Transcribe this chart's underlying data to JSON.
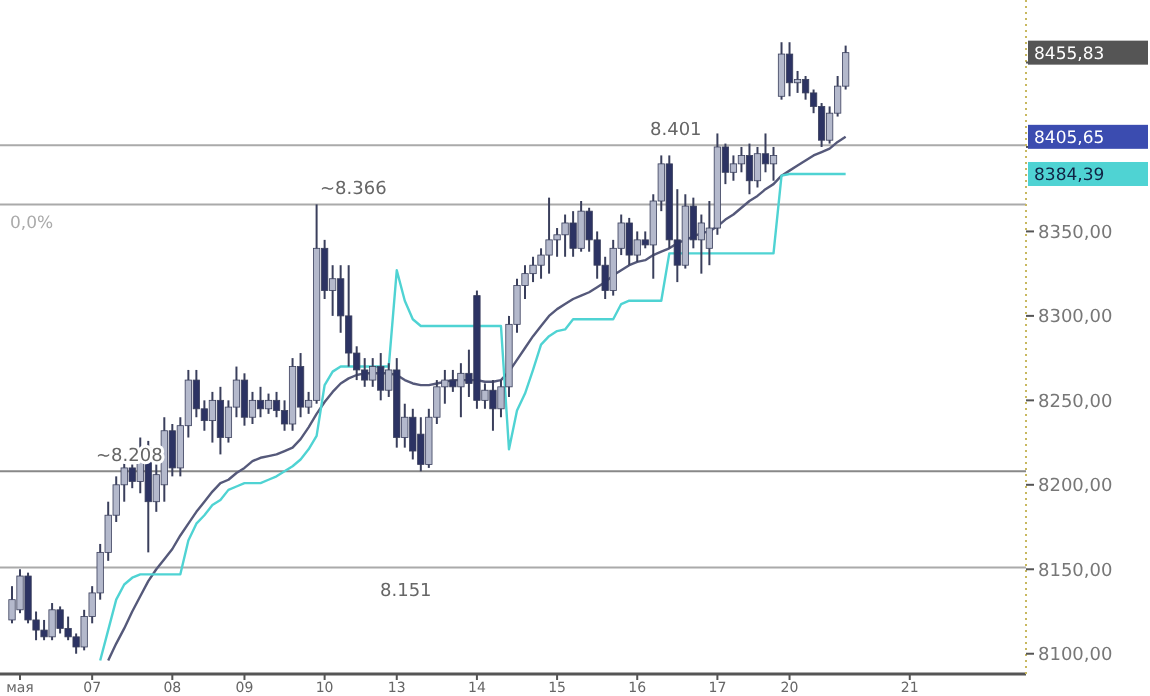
{
  "chart_data": {
    "type": "candlestick",
    "categories": [
      null,
      "мая",
      null,
      null,
      null,
      null,
      null,
      null,
      null,
      null,
      "07",
      null,
      null,
      null,
      null,
      null,
      null,
      null,
      null,
      null,
      "08",
      null,
      null,
      null,
      null,
      null,
      null,
      null,
      null,
      "09",
      null,
      null,
      null,
      null,
      null,
      null,
      null,
      null,
      null,
      "10",
      null,
      null,
      null,
      null,
      null,
      null,
      null,
      null,
      "13",
      null,
      null,
      null,
      null,
      null,
      null,
      null,
      null,
      null,
      "14",
      null,
      null,
      null,
      null,
      null,
      null,
      null,
      null,
      null,
      "15",
      null,
      null,
      null,
      null,
      null,
      null,
      null,
      null,
      null,
      "16",
      null,
      null,
      null,
      null,
      null,
      null,
      null,
      null,
      null,
      "17",
      null,
      null,
      null,
      null,
      null,
      null,
      null,
      null,
      "20",
      null,
      null,
      null,
      null,
      null,
      null,
      null,
      null,
      null,
      null,
      null,
      null,
      null,
      null,
      "21",
      null,
      null,
      null,
      null,
      null,
      null,
      null,
      null,
      null,
      null,
      null,
      null,
      null,
      null
    ],
    "ohlc": [
      [
        8120,
        8140,
        8118,
        8132
      ],
      [
        8126,
        8150,
        8124,
        8146
      ],
      [
        8146,
        8148,
        8118,
        8120
      ],
      [
        8120,
        8125,
        8108,
        8114
      ],
      [
        8114,
        8120,
        8108,
        8110
      ],
      [
        8110,
        8130,
        8108,
        8126
      ],
      [
        8126,
        8128,
        8112,
        8115
      ],
      [
        8115,
        8122,
        8108,
        8110
      ],
      [
        8110,
        8112,
        8100,
        8104
      ],
      [
        8104,
        8126,
        8102,
        8122
      ],
      [
        8122,
        8140,
        8118,
        8136
      ],
      [
        8136,
        8165,
        8132,
        8160
      ],
      [
        8160,
        8190,
        8155,
        8182
      ],
      [
        8182,
        8205,
        8178,
        8200
      ],
      [
        8200,
        8215,
        8190,
        8210
      ],
      [
        8210,
        8212,
        8198,
        8202
      ],
      [
        8202,
        8228,
        8195,
        8222
      ],
      [
        8222,
        8226,
        8160,
        8190
      ],
      [
        8190,
        8212,
        8184,
        8206
      ],
      [
        8200,
        8240,
        8190,
        8232
      ],
      [
        8232,
        8236,
        8205,
        8210
      ],
      [
        8210,
        8240,
        8205,
        8235
      ],
      [
        8235,
        8268,
        8228,
        8262
      ],
      [
        8262,
        8268,
        8240,
        8245
      ],
      [
        8245,
        8250,
        8232,
        8238
      ],
      [
        8238,
        8255,
        8225,
        8250
      ],
      [
        8250,
        8258,
        8218,
        8228
      ],
      [
        8228,
        8250,
        8225,
        8246
      ],
      [
        8246,
        8270,
        8240,
        8262
      ],
      [
        8262,
        8266,
        8235,
        8240
      ],
      [
        8240,
        8255,
        8236,
        8250
      ],
      [
        8250,
        8258,
        8240,
        8245
      ],
      [
        8245,
        8254,
        8242,
        8250
      ],
      [
        8250,
        8255,
        8240,
        8244
      ],
      [
        8244,
        8250,
        8232,
        8236
      ],
      [
        8236,
        8275,
        8232,
        8270
      ],
      [
        8270,
        8278,
        8240,
        8246
      ],
      [
        8246,
        8255,
        8242,
        8250
      ],
      [
        8250,
        8366,
        8248,
        8340
      ],
      [
        8340,
        8345,
        8310,
        8315
      ],
      [
        8315,
        8330,
        8300,
        8322
      ],
      [
        8322,
        8330,
        8290,
        8300
      ],
      [
        8300,
        8330,
        8270,
        8278
      ],
      [
        8278,
        8282,
        8262,
        8268
      ],
      [
        8268,
        8275,
        8258,
        8262
      ],
      [
        8262,
        8275,
        8258,
        8270
      ],
      [
        8270,
        8278,
        8250,
        8256
      ],
      [
        8256,
        8272,
        8252,
        8268
      ],
      [
        8268,
        8275,
        8222,
        8228
      ],
      [
        8228,
        8248,
        8222,
        8240
      ],
      [
        8240,
        8245,
        8215,
        8220
      ],
      [
        8230,
        8240,
        8208,
        8212
      ],
      [
        8212,
        8245,
        8210,
        8240
      ],
      [
        8240,
        8262,
        8236,
        8258
      ],
      [
        8258,
        8268,
        8248,
        8262
      ],
      [
        8262,
        8268,
        8255,
        8258
      ],
      [
        8258,
        8272,
        8240,
        8266
      ],
      [
        8266,
        8280,
        8252,
        8260
      ],
      [
        8312,
        8315,
        8245,
        8250
      ],
      [
        8250,
        8260,
        8245,
        8256
      ],
      [
        8256,
        8262,
        8232,
        8245
      ],
      [
        8245,
        8262,
        8240,
        8258
      ],
      [
        8258,
        8300,
        8252,
        8295
      ],
      [
        8295,
        8322,
        8290,
        8318
      ],
      [
        8318,
        8330,
        8310,
        8325
      ],
      [
        8325,
        8335,
        8320,
        8330
      ],
      [
        8330,
        8340,
        8322,
        8336
      ],
      [
        8336,
        8370,
        8325,
        8345
      ],
      [
        8345,
        8352,
        8335,
        8348
      ],
      [
        8348,
        8360,
        8335,
        8355
      ],
      [
        8355,
        8362,
        8335,
        8340
      ],
      [
        8340,
        8368,
        8338,
        8362
      ],
      [
        8362,
        8364,
        8338,
        8345
      ],
      [
        8345,
        8350,
        8322,
        8330
      ],
      [
        8330,
        8335,
        8310,
        8315
      ],
      [
        8315,
        8345,
        8312,
        8340
      ],
      [
        8340,
        8360,
        8336,
        8355
      ],
      [
        8355,
        8358,
        8330,
        8336
      ],
      [
        8336,
        8350,
        8332,
        8345
      ],
      [
        8345,
        8350,
        8340,
        8342
      ],
      [
        8342,
        8372,
        8322,
        8368
      ],
      [
        8368,
        8395,
        8362,
        8390
      ],
      [
        8390,
        8395,
        8340,
        8345
      ],
      [
        8345,
        8375,
        8320,
        8330
      ],
      [
        8330,
        8372,
        8328,
        8365
      ],
      [
        8365,
        8370,
        8340,
        8345
      ],
      [
        8345,
        8360,
        8325,
        8355
      ],
      [
        8340,
        8368,
        8330,
        8352
      ],
      [
        8352,
        8408,
        8348,
        8400
      ],
      [
        8400,
        8402,
        8378,
        8385
      ],
      [
        8385,
        8395,
        8380,
        8390
      ],
      [
        8390,
        8400,
        8385,
        8395
      ],
      [
        8395,
        8402,
        8372,
        8380
      ],
      [
        8380,
        8400,
        8376,
        8396
      ],
      [
        8396,
        8408,
        8385,
        8390
      ],
      [
        8390,
        8400,
        8380,
        8395
      ],
      [
        8430,
        8462,
        8428,
        8455
      ],
      [
        8455,
        8462,
        8430,
        8438
      ],
      [
        8438,
        8445,
        8432,
        8440
      ],
      [
        8440,
        8442,
        8428,
        8432
      ],
      [
        8432,
        8434,
        8420,
        8424
      ],
      [
        8424,
        8426,
        8400,
        8404
      ],
      [
        8404,
        8424,
        8402,
        8420
      ],
      [
        8420,
        8442,
        8418,
        8436
      ],
      [
        8436,
        8460,
        8434,
        8455.83
      ],
      null,
      null,
      null,
      null,
      null,
      null,
      null,
      null,
      null,
      null,
      null,
      null,
      null,
      null,
      null,
      null,
      null,
      null,
      null,
      null,
      null,
      null
    ],
    "series": [
      {
        "type": "line",
        "color": "#55597a",
        "values": [
          null,
          null,
          null,
          null,
          null,
          null,
          null,
          null,
          null,
          null,
          null,
          null,
          8096,
          8106,
          8115,
          8125,
          8134,
          8143,
          8150,
          8156,
          8162,
          8170,
          8177,
          8184,
          8190,
          8196,
          8201,
          8203,
          8207,
          8210,
          8214,
          8216,
          8217,
          8218,
          8220,
          8222,
          8227,
          8234,
          8242,
          8249,
          8255,
          8260,
          8263,
          8265,
          8266,
          8266,
          8266,
          8266,
          8265,
          8262,
          8260,
          8259,
          8259,
          8260,
          8261,
          8262,
          8262,
          8262,
          8262,
          8261,
          8261,
          8262,
          8267,
          8274,
          8281,
          8288,
          8294,
          8300,
          8304,
          8307,
          8310,
          8312,
          8314,
          8317,
          8320,
          8324,
          8327,
          8330,
          8332,
          8333,
          8336,
          8338,
          8340,
          8343,
          8345,
          8347,
          8349,
          8350,
          8353,
          8357,
          8360,
          8364,
          8368,
          8371,
          8375,
          8378,
          8383,
          8386,
          8389,
          8392,
          8395,
          8397,
          8399,
          8403,
          8406,
          null,
          null,
          null,
          null,
          null,
          null,
          null,
          null,
          null,
          null,
          null,
          null,
          null,
          null,
          null,
          null,
          null,
          null,
          null,
          null,
          null,
          null
        ]
      },
      {
        "type": "line",
        "color": "#4fd3d3",
        "values": [
          null,
          null,
          null,
          null,
          null,
          null,
          null,
          null,
          null,
          null,
          null,
          8096,
          8114,
          8132,
          8141,
          8145,
          8147,
          8147,
          8147,
          8147,
          8147,
          8147,
          8167,
          8177,
          8182,
          8188,
          8191,
          8197,
          8199,
          8201,
          8201,
          8201,
          8203,
          8205,
          8208,
          8211,
          8215,
          8221,
          8229,
          8259,
          8267,
          8270,
          8270,
          8270,
          8270,
          8270,
          8270,
          8270,
          8327,
          8309,
          8298,
          8294,
          8294,
          8294,
          8294,
          8294,
          8294,
          8294,
          8294,
          8294,
          8294,
          8294,
          8221,
          8244,
          8254,
          8268,
          8283,
          8288,
          8291,
          8292,
          8298,
          8298,
          8298,
          8298,
          8298,
          8298,
          8307,
          8309,
          8309,
          8309,
          8309,
          8309,
          8337,
          8337,
          8337,
          8337,
          8337,
          8337,
          8337,
          8337,
          8337,
          8337,
          8337,
          8337,
          8337,
          8337,
          8383,
          8384,
          8384,
          8384,
          8384,
          8384,
          8384,
          8384,
          8384,
          null,
          null,
          null,
          null,
          null,
          null,
          null,
          null,
          null,
          null,
          null,
          null,
          null,
          null,
          null,
          null,
          null,
          null,
          null,
          null,
          null,
          null
        ]
      }
    ],
    "ylim": [
      8088,
      8487
    ],
    "yticks": [
      {
        "value": 8100,
        "label": "8100,00"
      },
      {
        "value": 8150,
        "label": "8150,00"
      },
      {
        "value": 8200,
        "label": "8200,00"
      },
      {
        "value": 8250,
        "label": "8250,00"
      },
      {
        "value": 8300,
        "label": "8300,00"
      },
      {
        "value": 8350,
        "label": "8350,00"
      },
      {
        "value": 8400,
        "label": null
      },
      {
        "value": 8450,
        "label": null
      }
    ],
    "ref_lines": [
      {
        "axis": "y",
        "value": 8366,
        "label": "~8.366",
        "color": "#aaaaaa"
      },
      {
        "axis": "y",
        "value": 8208,
        "label": "~8.208",
        "color": "#888888"
      },
      {
        "axis": "y",
        "value": 8151,
        "label": "8.151",
        "color": "#aaaaaa"
      },
      {
        "axis": "y",
        "value": 8401,
        "label": "8.401",
        "color": "#aaaaaa"
      }
    ],
    "annotations": [
      "0,0%",
      "8455,83",
      "8405,65",
      "8384,39"
    ],
    "grid": false
  }
}
